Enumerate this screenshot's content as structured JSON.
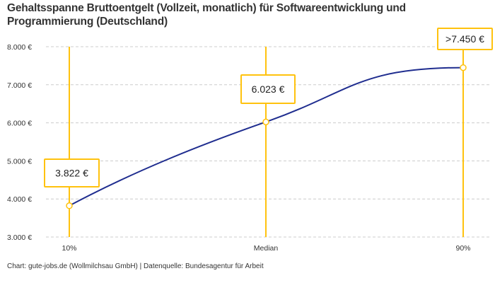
{
  "chart_data": {
    "type": "line",
    "title": "Gehaltsspanne Bruttoentgelt (Vollzeit, monatlich) für Softwareentwicklung und Programmierung (Deutschland)",
    "categories": [
      "10%",
      "Median",
      "90%"
    ],
    "values": [
      3822,
      6023,
      7450
    ],
    "data_labels": [
      "3.822 €",
      "6.023 €",
      ">7.450 €"
    ],
    "ylim": [
      3000,
      8000
    ],
    "yticks": [
      3000,
      4000,
      5000,
      6000,
      7000,
      8000
    ],
    "ytick_labels": [
      "3.000 €",
      "4.000 €",
      "5.000 €",
      "6.000 €",
      "7.000 €",
      "8.000 €"
    ],
    "grid": true,
    "colors": {
      "line": "#1f2d8f",
      "accent": "#ffc20e",
      "grid": "#cccccc"
    }
  },
  "footer": "Chart: gute-jobs.de (Wollmilchsau GmbH) | Datenquelle: Bundesagentur für Arbeit"
}
